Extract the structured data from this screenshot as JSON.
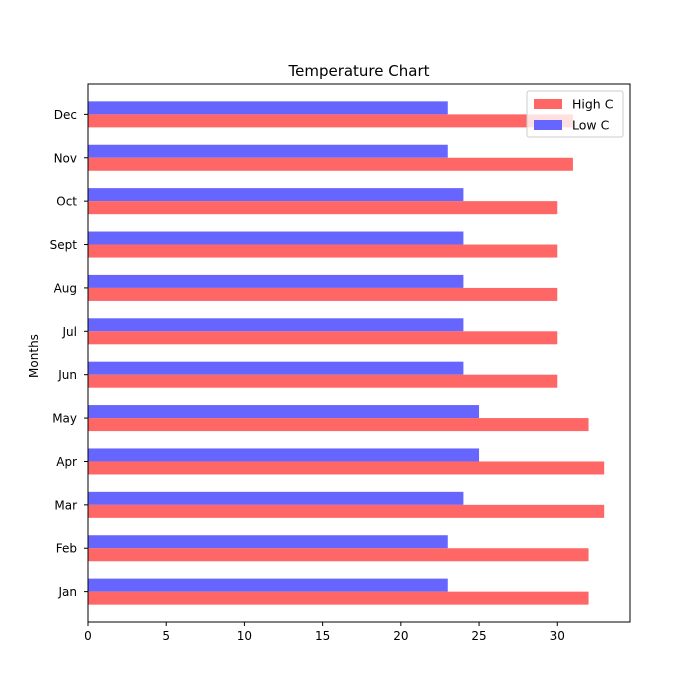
{
  "chart_data": {
    "type": "bar",
    "orientation": "horizontal",
    "title": "Temperature Chart",
    "xlabel": "",
    "ylabel": "Months",
    "categories": [
      "Jan",
      "Feb",
      "Mar",
      "Apr",
      "May",
      "Jun",
      "Jul",
      "Aug",
      "Sept",
      "Oct",
      "Nov",
      "Dec"
    ],
    "series": [
      {
        "name": "High C",
        "color": "#ff6666",
        "values": [
          32,
          32,
          33,
          33,
          32,
          30,
          30,
          30,
          30,
          30,
          31,
          31
        ]
      },
      {
        "name": "Low C",
        "color": "#6666ff",
        "values": [
          23,
          23,
          24,
          25,
          25,
          24,
          24,
          24,
          24,
          24,
          23,
          23
        ]
      }
    ],
    "xlim": [
      0,
      34.65
    ],
    "xticks": [
      0,
      5,
      10,
      15,
      20,
      25,
      30
    ],
    "grid": false,
    "legend": "top-right"
  }
}
